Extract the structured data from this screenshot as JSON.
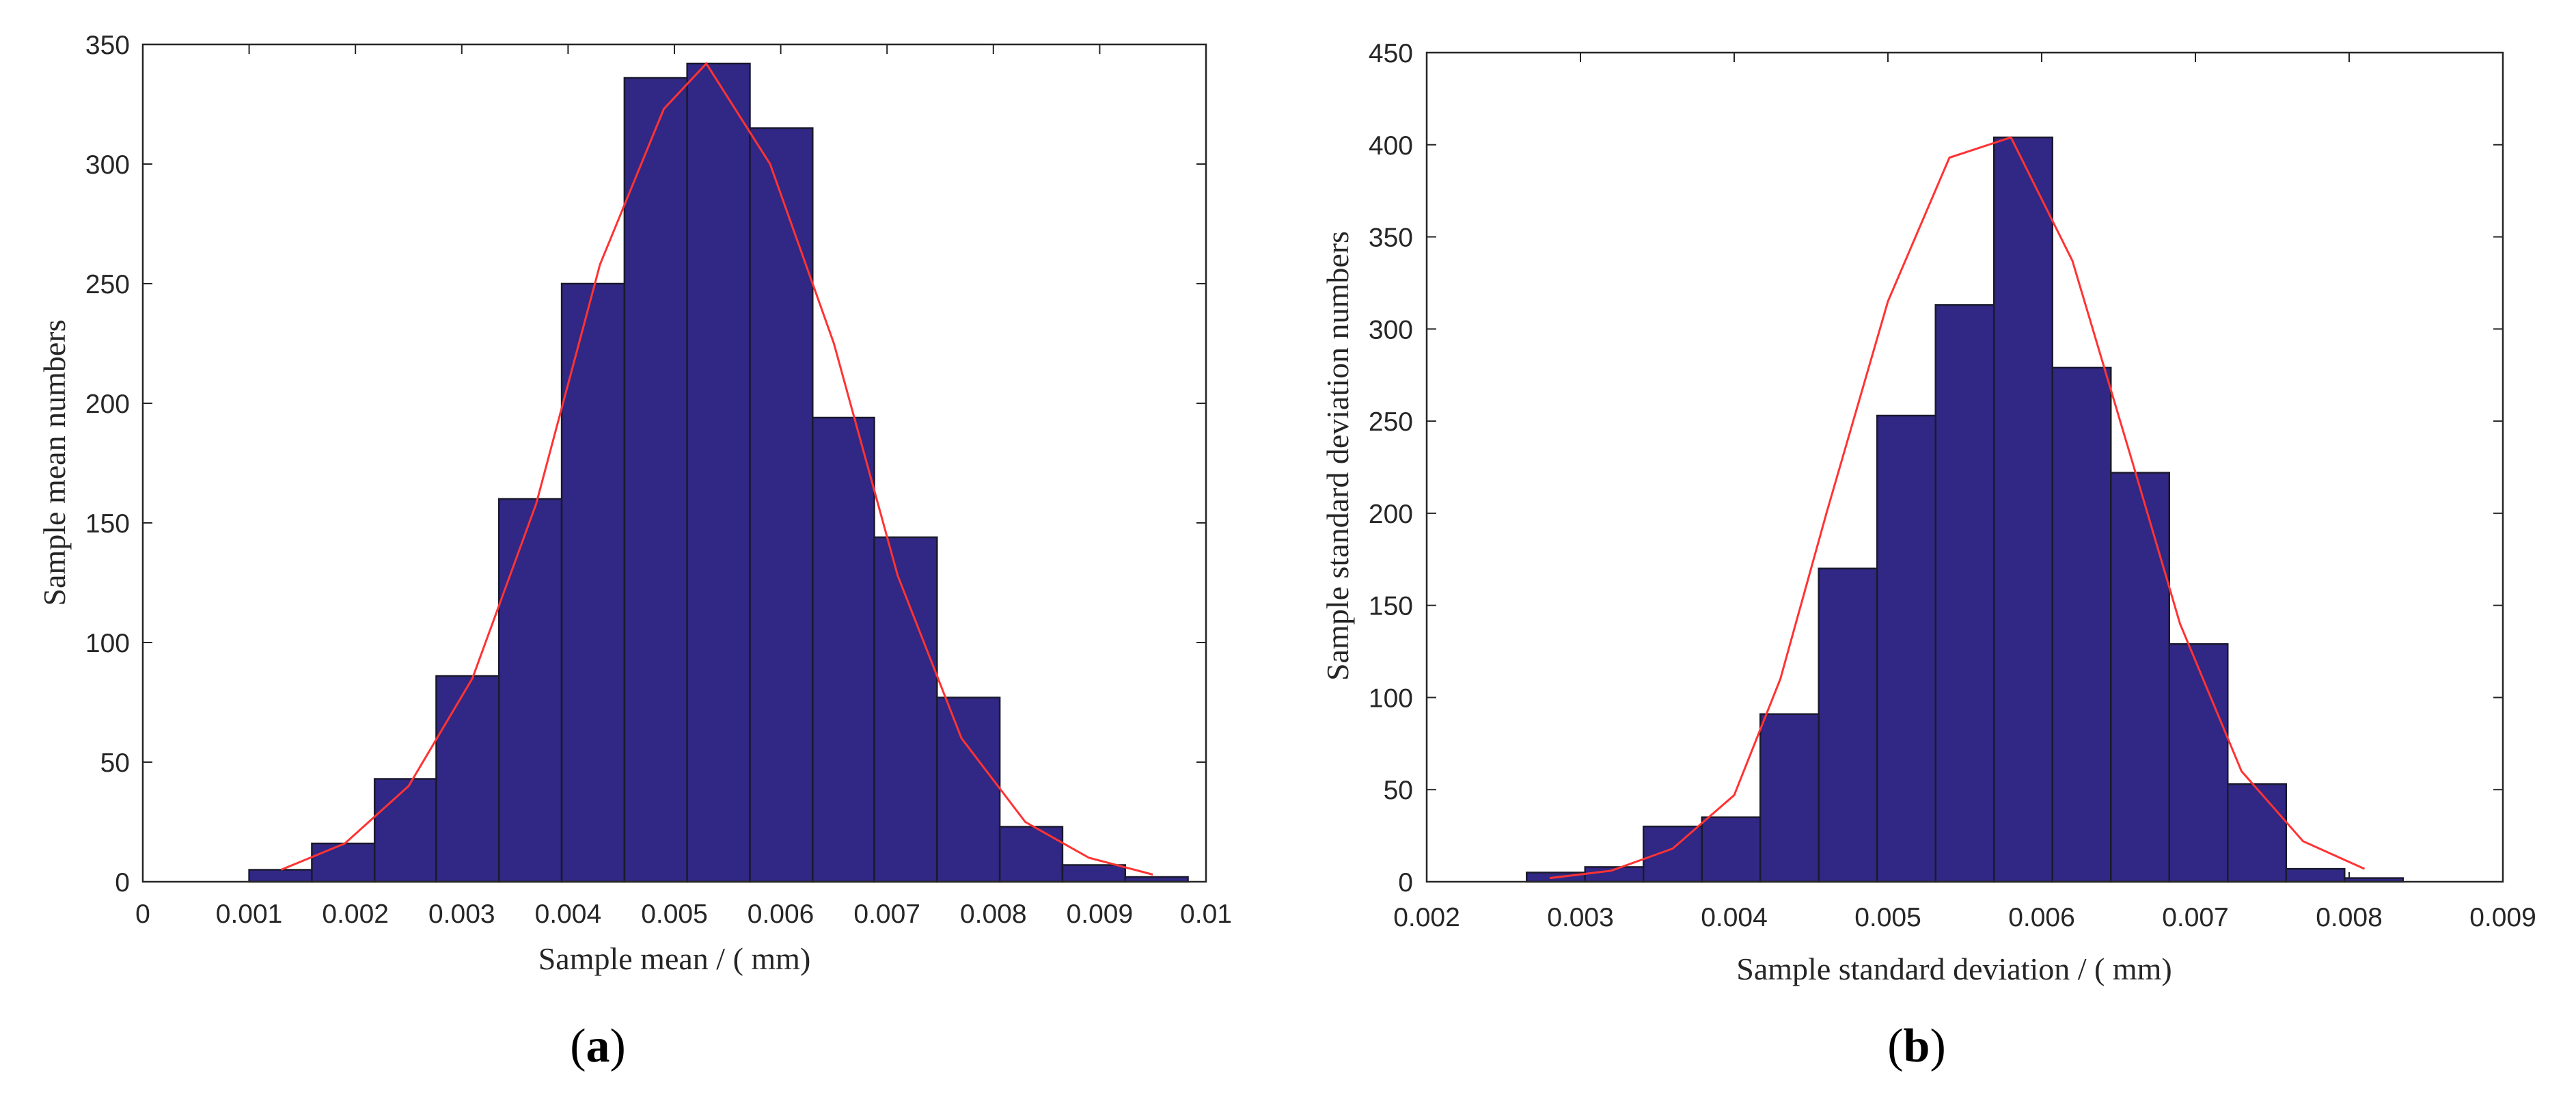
{
  "chart_data": [
    {
      "type": "bar",
      "panel_label": {
        "open": "(",
        "letter": "a",
        "close": ")"
      },
      "xlabel": "Sample mean / ( mm)",
      "ylabel": "Sample mean numbers",
      "xlim": [
        0,
        0.01
      ],
      "ylim": [
        0,
        350
      ],
      "xticks": [
        0,
        0.001,
        0.002,
        0.003,
        0.004,
        0.005,
        0.006,
        0.007,
        0.008,
        0.009,
        0.01
      ],
      "xtick_labels": [
        "0",
        "0.001",
        "0.002",
        "0.003",
        "0.004",
        "0.005",
        "0.006",
        "0.007",
        "0.008",
        "0.009",
        "0.01"
      ],
      "yticks": [
        0,
        50,
        100,
        150,
        200,
        250,
        300,
        350
      ],
      "ytick_labels": [
        "0",
        "50",
        "100",
        "150",
        "200",
        "250",
        "300",
        "350"
      ],
      "bin_edges": [
        0.001,
        0.00159,
        0.00218,
        0.00276,
        0.00335,
        0.00394,
        0.00453,
        0.00512,
        0.00571,
        0.0063,
        0.00688,
        0.00747,
        0.00806,
        0.00865,
        0.00924,
        0.00983
      ],
      "values": [
        5,
        16,
        43,
        86,
        160,
        250,
        336,
        342,
        315,
        194,
        144,
        77,
        23,
        7,
        2
      ],
      "fit_curve": {
        "x": [
          0.0013,
          0.0019,
          0.0025,
          0.0031,
          0.0037,
          0.0043,
          0.0049,
          0.0053,
          0.0059,
          0.0065,
          0.0071,
          0.0077,
          0.0083,
          0.0089,
          0.0095
        ],
        "y": [
          5,
          16,
          40,
          85,
          158,
          258,
          323,
          342,
          300,
          225,
          128,
          60,
          25,
          10,
          3
        ]
      },
      "colors": {
        "bar": "#312784",
        "bar_edge": "#1a1a2e",
        "curve": "#ff3333"
      }
    },
    {
      "type": "bar",
      "panel_label": {
        "open": "(",
        "letter": "b",
        "close": ")"
      },
      "xlabel": "Sample standard deviation / ( mm)",
      "ylabel": "Sample standard deviation numbers",
      "xlim": [
        0.002,
        0.009
      ],
      "ylim": [
        0,
        450
      ],
      "xticks": [
        0.002,
        0.003,
        0.004,
        0.005,
        0.006,
        0.007,
        0.008,
        0.009
      ],
      "xtick_labels": [
        "0.002",
        "0.003",
        "0.004",
        "0.005",
        "0.006",
        "0.007",
        "0.008",
        "0.009"
      ],
      "yticks": [
        0,
        50,
        100,
        150,
        200,
        250,
        300,
        350,
        400,
        450
      ],
      "ytick_labels": [
        "0",
        "50",
        "100",
        "150",
        "200",
        "250",
        "300",
        "350",
        "400",
        "450"
      ],
      "bin_edges": [
        0.00265,
        0.00303,
        0.00341,
        0.00379,
        0.00417,
        0.00455,
        0.00493,
        0.00531,
        0.00569,
        0.00607,
        0.00645,
        0.00683,
        0.00721,
        0.00759,
        0.00797,
        0.00835
      ],
      "values": [
        5,
        8,
        30,
        35,
        91,
        170,
        253,
        313,
        404,
        279,
        222,
        129,
        53,
        7,
        2
      ],
      "fit_curve": {
        "x": [
          0.0028,
          0.0032,
          0.0036,
          0.004,
          0.0043,
          0.0046,
          0.005,
          0.0054,
          0.0058,
          0.0062,
          0.0066,
          0.0069,
          0.0073,
          0.0077,
          0.0081
        ],
        "y": [
          2,
          6,
          18,
          47,
          110,
          200,
          315,
          393,
          404,
          337,
          225,
          140,
          60,
          22,
          7
        ]
      },
      "colors": {
        "bar": "#312784",
        "bar_edge": "#1a1a2e",
        "curve": "#ff3333"
      }
    }
  ]
}
